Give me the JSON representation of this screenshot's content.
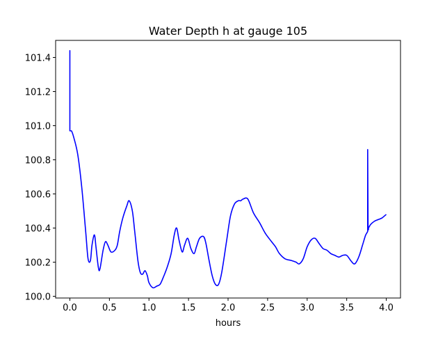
{
  "chart_data": {
    "type": "line",
    "title": "Water Depth h at gauge 105",
    "xlabel": "hours",
    "ylabel": "",
    "xlim": [
      -0.18,
      4.18
    ],
    "ylim": [
      99.99,
      101.5
    ],
    "x_ticks": [
      0.0,
      0.5,
      1.0,
      1.5,
      2.0,
      2.5,
      3.0,
      3.5,
      4.0
    ],
    "x_tick_labels": [
      "0.0",
      "0.5",
      "1.0",
      "1.5",
      "2.0",
      "2.5",
      "3.0",
      "3.5",
      "4.0"
    ],
    "y_ticks": [
      100.0,
      100.2,
      100.4,
      100.6,
      100.8,
      101.0,
      101.2,
      101.4
    ],
    "y_tick_labels": [
      "100.0",
      "100.2",
      "100.4",
      "100.6",
      "100.8",
      "101.0",
      "101.2",
      "101.4"
    ],
    "grid": false,
    "series": [
      {
        "color": "#0000ff",
        "x": [
          0.0,
          0.0,
          0.0,
          0.02,
          0.05,
          0.1,
          0.15,
          0.2,
          0.23,
          0.26,
          0.28,
          0.31,
          0.33,
          0.36,
          0.38,
          0.42,
          0.45,
          0.48,
          0.52,
          0.57,
          0.6,
          0.63,
          0.67,
          0.72,
          0.75,
          0.79,
          0.82,
          0.86,
          0.89,
          0.92,
          0.95,
          0.98,
          1.0,
          1.05,
          1.1,
          1.14,
          1.18,
          1.23,
          1.28,
          1.32,
          1.35,
          1.38,
          1.42,
          1.45,
          1.49,
          1.53,
          1.57,
          1.6,
          1.64,
          1.69,
          1.72,
          1.76,
          1.8,
          1.84,
          1.88,
          1.92,
          1.98,
          2.03,
          2.08,
          2.13,
          2.16,
          2.19,
          2.25,
          2.32,
          2.4,
          2.47,
          2.55,
          2.6,
          2.65,
          2.72,
          2.8,
          2.86,
          2.9,
          2.95,
          3.0,
          3.05,
          3.1,
          3.15,
          3.2,
          3.25,
          3.3,
          3.35,
          3.4,
          3.45,
          3.5,
          3.55,
          3.59,
          3.62,
          3.66,
          3.7,
          3.74,
          3.765,
          3.765,
          3.77,
          3.775,
          3.775,
          3.8,
          3.85,
          3.9,
          3.95,
          4.0
        ],
        "y": [
          100.97,
          101.44,
          100.97,
          100.97,
          100.93,
          100.83,
          100.64,
          100.38,
          100.22,
          100.21,
          100.3,
          100.36,
          100.29,
          100.17,
          100.16,
          100.27,
          100.32,
          100.3,
          100.26,
          100.27,
          100.3,
          100.38,
          100.46,
          100.53,
          100.56,
          100.5,
          100.38,
          100.21,
          100.14,
          100.13,
          100.15,
          100.12,
          100.08,
          100.05,
          100.06,
          100.07,
          100.11,
          100.17,
          100.25,
          100.36,
          100.4,
          100.33,
          100.26,
          100.3,
          100.34,
          100.28,
          100.25,
          100.29,
          100.34,
          100.35,
          100.31,
          100.21,
          100.12,
          100.07,
          100.07,
          100.14,
          100.32,
          100.47,
          100.54,
          100.56,
          100.56,
          100.57,
          100.57,
          100.49,
          100.43,
          100.37,
          100.32,
          100.29,
          100.25,
          100.22,
          100.21,
          100.2,
          100.19,
          100.22,
          100.29,
          100.33,
          100.34,
          100.31,
          100.28,
          100.27,
          100.25,
          100.24,
          100.23,
          100.24,
          100.24,
          100.21,
          100.19,
          100.2,
          100.24,
          100.3,
          100.36,
          100.38,
          100.86,
          100.39,
          100.39,
          100.4,
          100.42,
          100.44,
          100.45,
          100.46,
          100.48
        ]
      }
    ]
  }
}
